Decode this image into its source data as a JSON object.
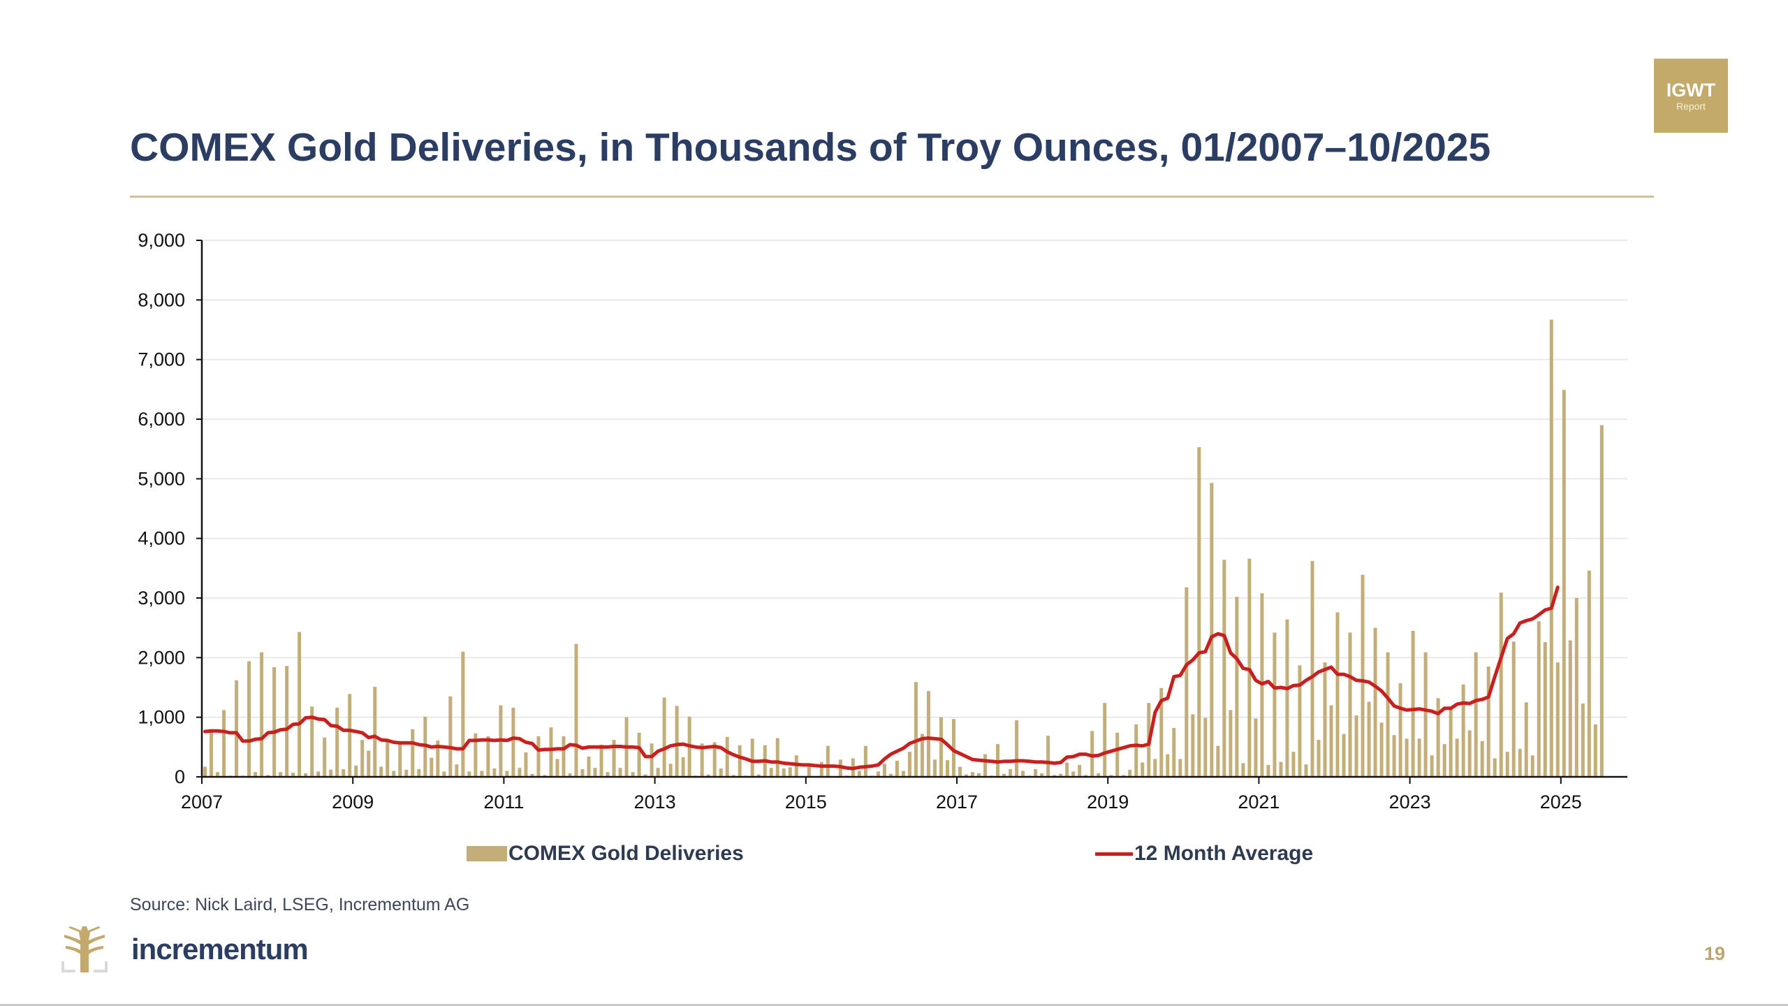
{
  "header": {
    "title": "COMEX Gold Deliveries, in Thousands of Troy Ounces, 01/2007–10/2025",
    "badge_line1": "IGWT",
    "badge_line2": "Report"
  },
  "footer": {
    "source": "Source: Nick Laird, LSEG, Incrementum AG",
    "logo_text": "incrementum",
    "page_number": "19"
  },
  "colors": {
    "title": "#2b3d63",
    "bar": "#c3ae79",
    "line": "#c8201e",
    "accent_gold": "#c3a96a"
  },
  "chart_data": {
    "type": "bar",
    "title": "COMEX Gold Deliveries, in Thousands of Troy Ounces, 01/2007–10/2025",
    "xlabel": "",
    "ylabel": "",
    "x_start": "2007-01",
    "x_end": "2025-10",
    "frequency": "monthly",
    "ylim": [
      0,
      9000
    ],
    "yticks": [
      "0",
      "1,000",
      "2,000",
      "3,000",
      "4,000",
      "5,000",
      "6,000",
      "7,000",
      "8,000",
      "9,000"
    ],
    "ytick_values": [
      0,
      1000,
      2000,
      3000,
      4000,
      5000,
      6000,
      7000,
      8000,
      9000
    ],
    "xticks": [
      "2007",
      "2009",
      "2011",
      "2013",
      "2015",
      "2017",
      "2019",
      "2021",
      "2023",
      "2025"
    ],
    "xtick_years": [
      2007,
      2009,
      2011,
      2013,
      2015,
      2017,
      2019,
      2021,
      2023,
      2025
    ],
    "grid": true,
    "legend_position": "bottom",
    "series": [
      {
        "name": "COMEX Gold Deliveries",
        "type": "bar",
        "values": [
          170,
          800,
          80,
          1120,
          20,
          1620,
          20,
          1940,
          80,
          2090,
          30,
          1840,
          80,
          1860,
          70,
          2430,
          60,
          1180,
          90,
          660,
          120,
          1160,
          130,
          1390,
          190,
          620,
          440,
          1510,
          170,
          610,
          100,
          570,
          120,
          800,
          130,
          1010,
          320,
          610,
          90,
          1350,
          210,
          2100,
          90,
          730,
          100,
          680,
          140,
          1200,
          100,
          1160,
          150,
          410,
          50,
          680,
          30,
          830,
          300,
          680,
          60,
          2230,
          130,
          340,
          150,
          540,
          80,
          620,
          150,
          1000,
          80,
          740,
          40,
          560,
          150,
          1330,
          220,
          1190,
          330,
          1010,
          20,
          560,
          40,
          580,
          140,
          670,
          30,
          530,
          20,
          640,
          40,
          530,
          150,
          650,
          140,
          160,
          360,
          10,
          210,
          10,
          250,
          520,
          10,
          290,
          20,
          310,
          100,
          520,
          20,
          90,
          220,
          50,
          270,
          100,
          420,
          1590,
          720,
          1440,
          290,
          1000,
          280,
          970,
          170,
          40,
          80,
          60,
          380,
          20,
          550,
          50,
          130,
          950,
          100,
          20,
          130,
          60,
          690,
          30,
          50,
          240,
          90,
          200,
          30,
          770,
          60,
          1240,
          30,
          740,
          30,
          120,
          880,
          240,
          1240,
          300,
          1490,
          380,
          820,
          300,
          3180,
          1050,
          5530,
          990,
          4930,
          520,
          3640,
          1120,
          3020,
          230,
          3660,
          980,
          3080,
          200,
          2420,
          250,
          2640,
          420,
          1870,
          210,
          3620,
          620,
          1920,
          1200,
          2760,
          720,
          2420,
          1030,
          3390,
          1260,
          2500,
          910,
          2090,
          700,
          1570,
          640,
          2450,
          640,
          2090,
          360,
          1320,
          550,
          1180,
          640,
          1550,
          780,
          2090,
          600,
          1850,
          310,
          3090,
          420,
          2270,
          470,
          1250,
          360,
          2610,
          2260,
          7670,
          1920,
          6490,
          2290,
          3000,
          1230,
          3460,
          880,
          5900
        ]
      },
      {
        "name": "12 Month Average",
        "type": "line",
        "values": [
          760,
          770,
          770,
          760,
          740,
          740,
          600,
          600,
          630,
          640,
          740,
          750,
          790,
          800,
          880,
          890,
          990,
          1000,
          970,
          960,
          860,
          850,
          780,
          780,
          760,
          740,
          660,
          680,
          620,
          610,
          580,
          570,
          570,
          570,
          540,
          530,
          500,
          510,
          500,
          490,
          470,
          470,
          610,
          610,
          620,
          620,
          610,
          620,
          610,
          650,
          640,
          580,
          560,
          450,
          460,
          460,
          470,
          470,
          540,
          530,
          480,
          500,
          500,
          500,
          500,
          510,
          510,
          500,
          500,
          490,
          340,
          340,
          430,
          470,
          520,
          540,
          550,
          520,
          500,
          490,
          500,
          510,
          490,
          420,
          370,
          330,
          300,
          260,
          260,
          270,
          250,
          250,
          230,
          220,
          210,
          200,
          200,
          190,
          180,
          180,
          180,
          170,
          150,
          140,
          160,
          170,
          180,
          200,
          300,
          380,
          430,
          480,
          560,
          600,
          640,
          650,
          640,
          630,
          540,
          440,
          390,
          340,
          290,
          280,
          270,
          260,
          250,
          260,
          260,
          270,
          270,
          260,
          250,
          250,
          240,
          230,
          240,
          330,
          340,
          380,
          380,
          350,
          360,
          400,
          430,
          460,
          490,
          520,
          530,
          520,
          550,
          1080,
          1280,
          1320,
          1680,
          1700,
          1880,
          1960,
          2080,
          2100,
          2350,
          2400,
          2370,
          2080,
          1980,
          1820,
          1800,
          1620,
          1560,
          1600,
          1490,
          1500,
          1480,
          1530,
          1540,
          1620,
          1680,
          1760,
          1800,
          1840,
          1720,
          1720,
          1680,
          1620,
          1610,
          1590,
          1520,
          1440,
          1320,
          1190,
          1150,
          1120,
          1130,
          1140,
          1120,
          1100,
          1060,
          1150,
          1150,
          1220,
          1240,
          1230,
          1280,
          1300,
          1340,
          1680,
          2000,
          2320,
          2400,
          2580,
          2620,
          2650,
          2720,
          2800,
          2830,
          3180
        ]
      }
    ]
  },
  "legend": {
    "bar_label": "COMEX Gold Deliveries",
    "line_label": "12 Month Average"
  }
}
